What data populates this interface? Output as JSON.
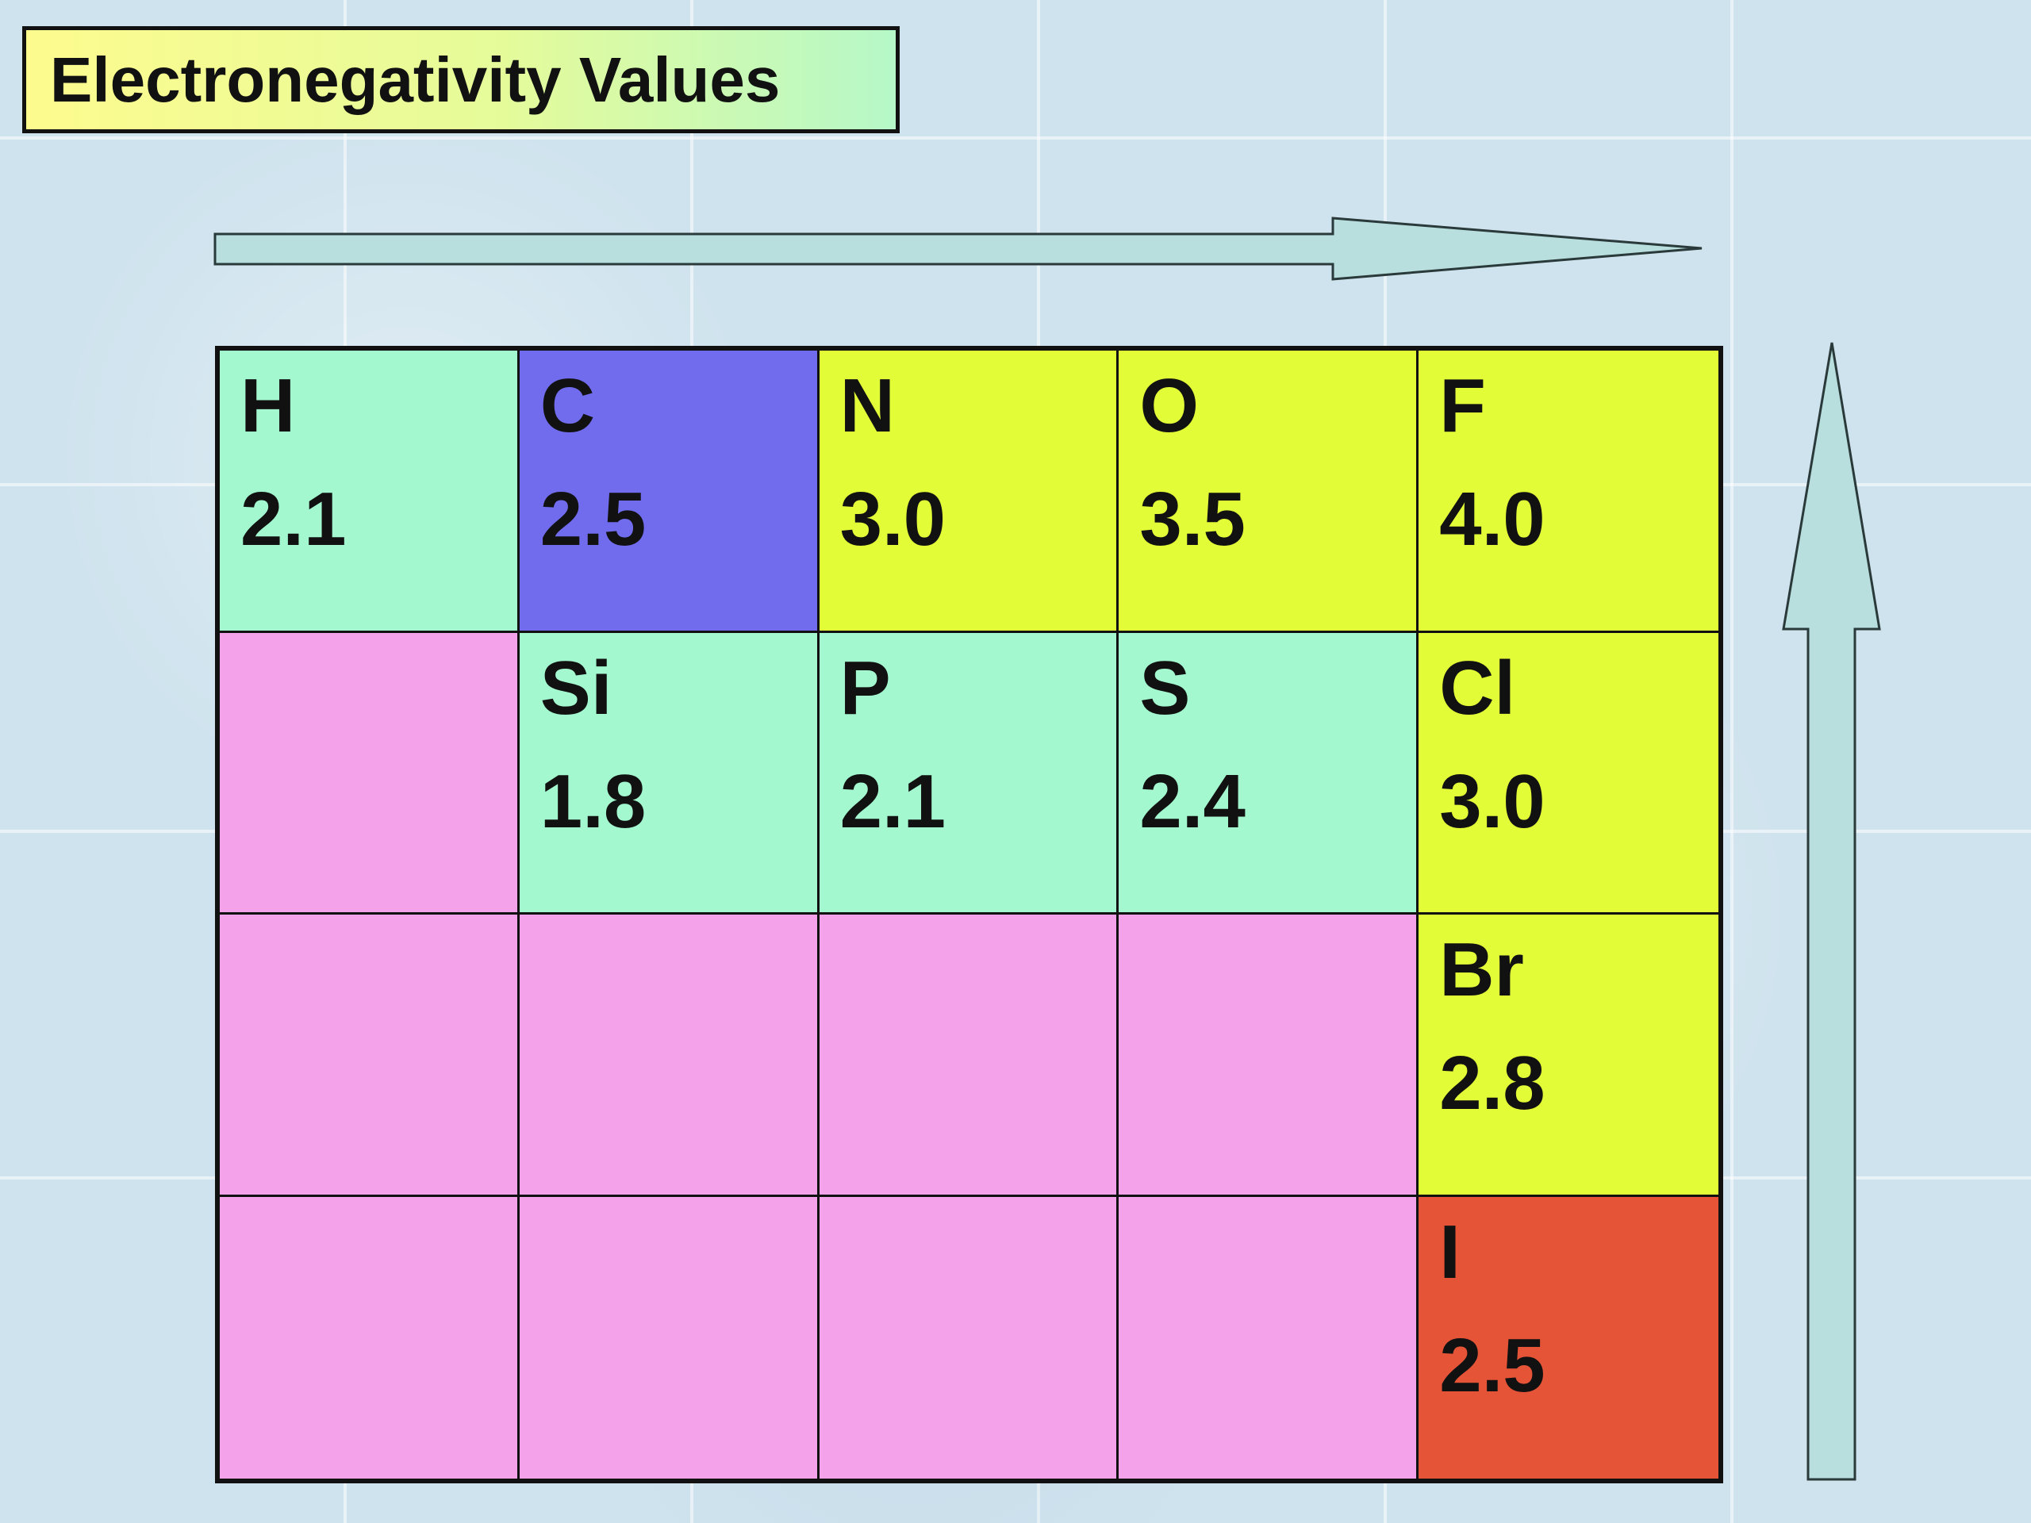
{
  "title": "Electronegativity Values",
  "colors": {
    "teal": "#a3f8cf",
    "blue": "#706ced",
    "yellow": "#e3fc38",
    "pink": "#f4a3ea",
    "red": "#e55437",
    "arrow_fill": "#b8dedd"
  },
  "table": {
    "rows": [
      [
        {
          "symbol": "H",
          "value": "2.1",
          "color": "#a3f8cf"
        },
        {
          "symbol": "C",
          "value": "2.5",
          "color": "#706ced"
        },
        {
          "symbol": "N",
          "value": "3.0",
          "color": "#e3fc38"
        },
        {
          "symbol": "O",
          "value": "3.5",
          "color": "#e3fc38"
        },
        {
          "symbol": "F",
          "value": "4.0",
          "color": "#e3fc38"
        }
      ],
      [
        {
          "symbol": "",
          "value": "",
          "color": "#f4a3ea"
        },
        {
          "symbol": "Si",
          "value": "1.8",
          "color": "#a3f8cf"
        },
        {
          "symbol": "P",
          "value": "2.1",
          "color": "#a3f8cf"
        },
        {
          "symbol": "S",
          "value": "2.4",
          "color": "#a3f8cf"
        },
        {
          "symbol": "Cl",
          "value": "3.0",
          "color": "#e3fc38"
        }
      ],
      [
        {
          "symbol": "",
          "value": "",
          "color": "#f4a3ea"
        },
        {
          "symbol": "",
          "value": "",
          "color": "#f4a3ea"
        },
        {
          "symbol": "",
          "value": "",
          "color": "#f4a3ea"
        },
        {
          "symbol": "",
          "value": "",
          "color": "#f4a3ea"
        },
        {
          "symbol": "Br",
          "value": "2.8",
          "color": "#e3fc38"
        }
      ],
      [
        {
          "symbol": "",
          "value": "",
          "color": "#f4a3ea"
        },
        {
          "symbol": "",
          "value": "",
          "color": "#f4a3ea"
        },
        {
          "symbol": "",
          "value": "",
          "color": "#f4a3ea"
        },
        {
          "symbol": "",
          "value": "",
          "color": "#f4a3ea"
        },
        {
          "symbol": "I",
          "value": "2.5",
          "color": "#e55437"
        }
      ]
    ]
  },
  "arrows": [
    {
      "name": "horizontal-arrow-right",
      "direction": "right"
    },
    {
      "name": "vertical-arrow-up",
      "direction": "up"
    }
  ]
}
